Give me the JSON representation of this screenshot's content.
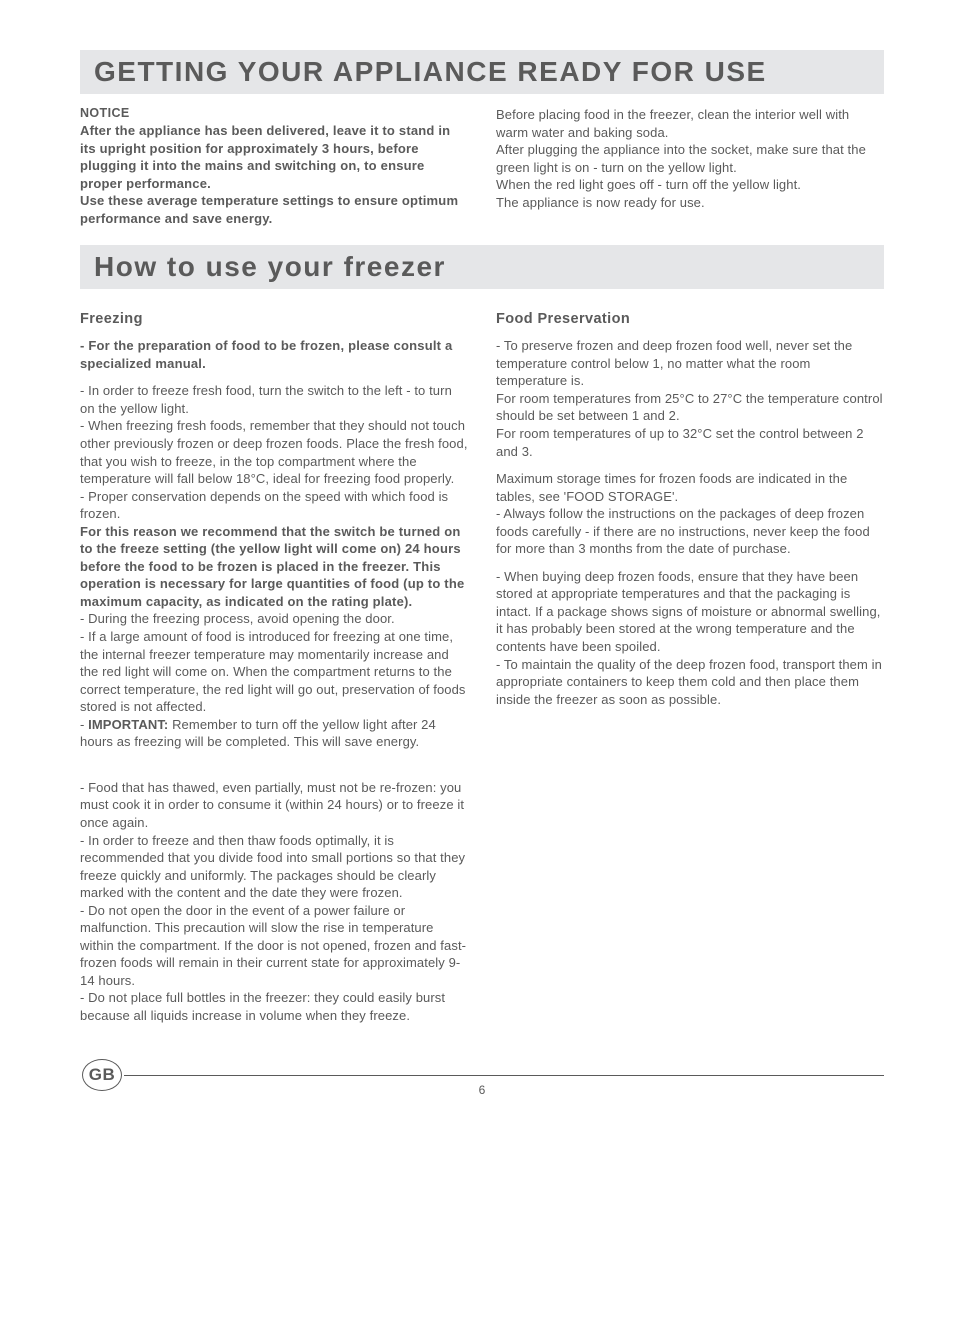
{
  "colors": {
    "text": "#5a5a5a",
    "banner_bg": "#e5e6e8",
    "page_bg": "#ffffff",
    "rule": "#5a5a5a"
  },
  "typography": {
    "banner_title_pt": 28,
    "subhead_pt": 14.5,
    "body_pt": 13,
    "notice_pt": 12.5
  },
  "banner1": {
    "title": "GETTING YOUR APPLIANCE READY FOR USE"
  },
  "notice": {
    "heading": "NOTICE",
    "para1": "After the appliance has been delivered, leave it to stand in  its upright position for approximately 3 hours, before plugging it into the mains and switching on, to ensure proper performance.",
    "para2": "Use these average temperature settings to ensure optimum performance and save energy."
  },
  "right1": {
    "p1": "Before placing food in the freezer, clean the interior well with warm water and baking soda.",
    "p2": "After plugging the appliance into the socket, make sure that the green light is on  - turn on the yellow light.",
    "p3": "When the red light goes off - turn off the yellow light.",
    "p4": "The appliance is now ready for use."
  },
  "banner2": {
    "title": "How to use your freezer"
  },
  "freezing": {
    "heading": "Freezing",
    "lead": "- For the preparation of food to be frozen, please consult a specialized manual.",
    "p1": "- In order to freeze fresh food, turn the switch to the left - to turn on the yellow light.",
    "p2": "- When freezing fresh foods, remember that they should not touch other previously frozen or deep frozen foods.  Place the fresh food, that you wish to freeze, in the top compartment where the temperature will fall below 18°C, ideal for freezing food properly.",
    "p3": "- Proper conservation depends on the speed with which food is frozen.",
    "boldp": "For this reason we recommend that the switch be turned on to the freeze setting (the yellow light will come on) 24 hours before the food to be frozen is placed in the freezer. This operation is necessary for large quantities of food (up to the maximum capacity, as indicated on the rating plate).",
    "p4": "- During the freezing process, avoid opening the door.",
    "p5": "- If a large amount of food is introduced for freezing at one time, the internal freezer temperature may momentarily increase and the red light will come on.  When the compartment returns to the correct temperature, the red light will go out, preservation of foods stored is not affected.",
    "p6a": "- ",
    "p6b": "IMPORTANT:",
    "p6c": " Remember to turn off the yellow light after 24 hours as freezing will be completed.  This will save energy.",
    "p7": "- Food that has thawed, even partially, must not be re-frozen: you must cook it in order to consume it (within 24 hours) or to freeze it once again.",
    "p8": "- In order to freeze and then thaw foods optimally, it is recommended that you divide food into small portions so that they freeze quickly and uniformly. The packages should be clearly marked with the content and the date they were frozen.",
    "p9": "- Do not open the door in the event of a power failure or malfunction. This precaution will slow the rise in temperature within the compartment. If the door is not opened, frozen and fast-frozen foods will remain in their current state for approximately 9-14 hours.",
    "p10": "- Do not place full bottles in the freezer: they could easily burst because all liquids increase in volume when they freeze."
  },
  "preservation": {
    "heading": "Food  Preservation",
    "p1": "- To preserve frozen and deep frozen food well, never set the temperature control below 1, no matter what the room temperature is.",
    "p2": "For room temperatures from 25°C to 27°C the temperature control should be set between 1 and 2.",
    "p3": "For room temperatures of up to 32°C set the control between 2 and 3.",
    "p4": "Maximum storage times for frozen foods are indicated in the tables, see 'FOOD STORAGE'.",
    "p5": "- Always follow the instructions on the packages of deep frozen foods carefully - if there are no instructions, never keep the food for more than 3 months from the date of purchase.",
    "p6": "- When buying deep frozen foods, ensure that they have been stored at appropriate temperatures and that the packaging is intact.  If a package shows signs of moisture or abnormal swelling, it has probably been stored at the wrong temperature and the contents have been spoiled.",
    "p7": "- To maintain the quality of the deep frozen food, transport them in appropriate containers to keep them cold and then place them inside the freezer as soon as possible."
  },
  "footer": {
    "badge": "GB",
    "page": "6"
  }
}
